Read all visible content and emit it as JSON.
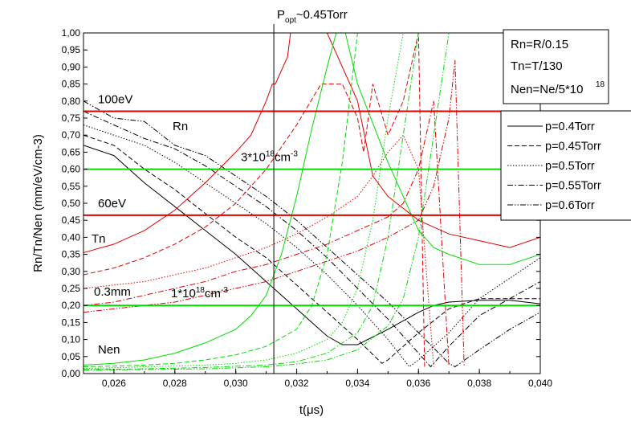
{
  "chart_data": {
    "type": "line",
    "xlabel": "t(μs)",
    "ylabel": "Rn/Tn/Nen (mm/eV/cm-3)",
    "xlim": [
      0.025,
      0.04
    ],
    "ylim": [
      0.0,
      1.0
    ],
    "x_ticks": [
      "0,026",
      "0,028",
      "0,030",
      "0,032",
      "0,034",
      "0,036",
      "0,038",
      "0,040"
    ],
    "x_tick_values": [
      0.026,
      0.028,
      0.03,
      0.032,
      0.034,
      0.036,
      0.038,
      0.04
    ],
    "y_ticks": [
      "0,00",
      "0,05",
      "0,10",
      "0,15",
      "0,20",
      "0,25",
      "0,30",
      "0,35",
      "0,40",
      "0,45",
      "0,50",
      "0,55",
      "0,60",
      "0,65",
      "0,70",
      "0,75",
      "0,80",
      "0,85",
      "0,90",
      "0,95",
      "1,00"
    ],
    "y_tick_values": [
      0,
      0.05,
      0.1,
      0.15,
      0.2,
      0.25,
      0.3,
      0.35,
      0.4,
      0.45,
      0.5,
      0.55,
      0.6,
      0.65,
      0.7,
      0.75,
      0.8,
      0.85,
      0.9,
      0.95,
      1.0
    ],
    "legend": {
      "placement": "right",
      "entries": [
        {
          "label": "p=0.4Torr",
          "dash": "solid"
        },
        {
          "label": "p=0.45Torr",
          "dash": "dashed"
        },
        {
          "label": "p=0.5Torr",
          "dash": "dotted"
        },
        {
          "label": "p=0.55Torr",
          "dash": "dash-dot"
        },
        {
          "label": "p=0.6Torr",
          "dash": "dash-dot-dot"
        }
      ]
    },
    "info_box": [
      "Rn=R/0.15",
      "Tn=T/130",
      "Nen=Ne/5*10",
      "18"
    ],
    "reference_lines": [
      {
        "axis": "y",
        "value": 0.77,
        "color": "#e00000",
        "label": "100eV"
      },
      {
        "axis": "y",
        "value": 0.465,
        "color": "#e00000",
        "label": "60eV"
      },
      {
        "axis": "y",
        "value": 0.6,
        "color": "#00dd00",
        "label": "3*10",
        "sup": "18",
        "unit": "cm",
        "unit_sup": "-3"
      },
      {
        "axis": "y",
        "value": 0.2,
        "color": "#00dd00",
        "label": "1*10",
        "sup": "18",
        "unit": "cm",
        "unit_sup": "-3"
      },
      {
        "axis": "x",
        "value": 0.03125,
        "color": "#000000",
        "label": "P",
        "sub": "opt",
        "suffix": "~0.45Torr"
      }
    ],
    "curve_labels": [
      {
        "text": "Rn",
        "x": 0.0285,
        "y": 0.7
      },
      {
        "text": "Tn",
        "x": 0.0251,
        "y": 0.385
      },
      {
        "text": "0.3mm",
        "x": 0.0251,
        "y": 0.23
      },
      {
        "text": "Nen",
        "x": 0.0251,
        "y": 0.063
      }
    ],
    "colors": {
      "Rn": "#000000",
      "Tn": "#e00000",
      "Nen": "#00dd00"
    },
    "series": [
      {
        "group": "Rn",
        "pressure": "p=0.4Torr",
        "dash": "solid",
        "color": "#000000",
        "x": [
          0.025,
          0.026,
          0.027,
          0.028,
          0.029,
          0.03,
          0.031,
          0.032,
          0.033,
          0.0335,
          0.034,
          0.035,
          0.036,
          0.0365,
          0.037,
          0.038,
          0.039,
          0.04
        ],
        "y": [
          0.67,
          0.64,
          0.56,
          0.49,
          0.42,
          0.35,
          0.27,
          0.19,
          0.11,
          0.085,
          0.085,
          0.13,
          0.18,
          0.2,
          0.21,
          0.215,
          0.215,
          0.205
        ]
      },
      {
        "group": "Rn",
        "pressure": "p=0.45Torr",
        "dash": "dashed",
        "color": "#000000",
        "x": [
          0.025,
          0.026,
          0.027,
          0.028,
          0.029,
          0.03,
          0.031,
          0.032,
          0.033,
          0.034,
          0.0348,
          0.035,
          0.036,
          0.037,
          0.038,
          0.039,
          0.04
        ],
        "y": [
          0.7,
          0.67,
          0.6,
          0.54,
          0.47,
          0.4,
          0.34,
          0.26,
          0.18,
          0.1,
          0.03,
          0.04,
          0.12,
          0.19,
          0.22,
          0.22,
          0.22
        ]
      },
      {
        "group": "Rn",
        "pressure": "p=0.5Torr",
        "dash": "dotted",
        "color": "#000000",
        "x": [
          0.025,
          0.026,
          0.027,
          0.028,
          0.029,
          0.03,
          0.031,
          0.032,
          0.033,
          0.034,
          0.035,
          0.0357,
          0.036,
          0.037,
          0.038,
          0.039,
          0.04
        ],
        "y": [
          0.73,
          0.7,
          0.67,
          0.62,
          0.56,
          0.5,
          0.44,
          0.37,
          0.29,
          0.2,
          0.1,
          0.02,
          0.04,
          0.12,
          0.22,
          0.28,
          0.34
        ]
      },
      {
        "group": "Rn",
        "pressure": "p=0.55Torr",
        "dash": "dash-dot",
        "color": "#000000",
        "x": [
          0.025,
          0.026,
          0.027,
          0.028,
          0.029,
          0.03,
          0.031,
          0.032,
          0.033,
          0.034,
          0.035,
          0.036,
          0.0364,
          0.037,
          0.038,
          0.039,
          0.04
        ],
        "y": [
          0.77,
          0.73,
          0.69,
          0.66,
          0.61,
          0.55,
          0.49,
          0.42,
          0.34,
          0.25,
          0.16,
          0.06,
          0.02,
          0.08,
          0.17,
          0.22,
          0.27
        ]
      },
      {
        "group": "Rn",
        "pressure": "p=0.6Torr",
        "dash": "dash-dot-dot",
        "color": "#000000",
        "x": [
          0.025,
          0.026,
          0.027,
          0.028,
          0.029,
          0.03,
          0.031,
          0.032,
          0.033,
          0.034,
          0.035,
          0.036,
          0.037,
          0.0372,
          0.038,
          0.039,
          0.04
        ],
        "y": [
          0.8,
          0.75,
          0.74,
          0.67,
          0.64,
          0.58,
          0.52,
          0.45,
          0.37,
          0.29,
          0.21,
          0.12,
          0.03,
          0.02,
          0.07,
          0.13,
          0.18
        ]
      },
      {
        "group": "Tn",
        "pressure": "p=0.4Torr",
        "dash": "solid",
        "color": "#e00000",
        "x": [
          0.025,
          0.026,
          0.027,
          0.028,
          0.029,
          0.03,
          0.0305,
          0.031,
          0.0312,
          0.0313,
          0.0317,
          0.0318,
          0.032,
          0.033,
          0.034,
          0.0345,
          0.035,
          0.036,
          0.037,
          0.038,
          0.039,
          0.04
        ],
        "y": [
          0.355,
          0.38,
          0.42,
          0.48,
          0.56,
          0.65,
          0.7,
          0.8,
          0.85,
          0.85,
          0.93,
          1.0,
          1.0,
          1.0,
          0.8,
          0.58,
          0.52,
          0.45,
          0.41,
          0.39,
          0.37,
          0.4
        ]
      },
      {
        "group": "Tn",
        "pressure": "p=0.45Torr",
        "dash": "dashed",
        "color": "#e00000",
        "x": [
          0.025,
          0.026,
          0.027,
          0.028,
          0.029,
          0.03,
          0.031,
          0.032,
          0.0328,
          0.033,
          0.0335,
          0.034,
          0.0342,
          0.0345,
          0.035,
          0.0355,
          0.036,
          0.0362
        ],
        "y": [
          0.29,
          0.31,
          0.34,
          0.38,
          0.43,
          0.5,
          0.6,
          0.73,
          0.85,
          0.85,
          0.85,
          0.75,
          0.65,
          0.85,
          0.7,
          0.8,
          1.0,
          0.02
        ]
      },
      {
        "group": "Tn",
        "pressure": "p=0.5Torr",
        "dash": "dotted",
        "color": "#e00000",
        "x": [
          0.025,
          0.026,
          0.027,
          0.028,
          0.029,
          0.03,
          0.031,
          0.032,
          0.033,
          0.034,
          0.0345,
          0.035,
          0.0355,
          0.036,
          0.0365
        ],
        "y": [
          0.25,
          0.26,
          0.27,
          0.29,
          0.31,
          0.34,
          0.37,
          0.41,
          0.46,
          0.52,
          0.58,
          0.65,
          0.7,
          0.6,
          0.02
        ]
      },
      {
        "group": "Tn",
        "pressure": "p=0.55Torr",
        "dash": "dash-dot",
        "color": "#e00000",
        "x": [
          0.025,
          0.026,
          0.027,
          0.028,
          0.029,
          0.03,
          0.031,
          0.032,
          0.033,
          0.034,
          0.035,
          0.0355,
          0.036,
          0.0365,
          0.037
        ],
        "y": [
          0.2,
          0.21,
          0.23,
          0.25,
          0.27,
          0.3,
          0.32,
          0.35,
          0.38,
          0.42,
          0.46,
          0.5,
          0.6,
          0.8,
          0.02
        ]
      },
      {
        "group": "Tn",
        "pressure": "p=0.6Torr",
        "dash": "dash-dot-dot",
        "color": "#e00000",
        "x": [
          0.025,
          0.026,
          0.027,
          0.028,
          0.029,
          0.03,
          0.031,
          0.032,
          0.033,
          0.034,
          0.035,
          0.036,
          0.0365,
          0.037,
          0.0372,
          0.0375
        ],
        "y": [
          0.18,
          0.19,
          0.2,
          0.21,
          0.23,
          0.25,
          0.27,
          0.3,
          0.33,
          0.36,
          0.4,
          0.45,
          0.55,
          0.75,
          0.92,
          0.02
        ]
      },
      {
        "group": "Nen",
        "pressure": "p=0.4Torr",
        "dash": "solid",
        "color": "#00dd00",
        "x": [
          0.025,
          0.026,
          0.027,
          0.028,
          0.029,
          0.03,
          0.0305,
          0.031,
          0.0315,
          0.032,
          0.0325,
          0.033,
          0.0333,
          0.0336,
          0.034,
          0.035,
          0.036,
          0.0365,
          0.037,
          0.038,
          0.039,
          0.04
        ],
        "y": [
          0.025,
          0.03,
          0.04,
          0.06,
          0.09,
          0.13,
          0.17,
          0.23,
          0.35,
          0.52,
          0.72,
          0.9,
          1.0,
          1.0,
          0.85,
          0.62,
          0.42,
          0.37,
          0.35,
          0.32,
          0.32,
          0.35
        ]
      },
      {
        "group": "Nen",
        "pressure": "p=0.45Torr",
        "dash": "dashed",
        "color": "#00dd00",
        "x": [
          0.025,
          0.026,
          0.027,
          0.028,
          0.029,
          0.03,
          0.031,
          0.032,
          0.0325,
          0.033,
          0.0335,
          0.034
        ],
        "y": [
          0.02,
          0.022,
          0.025,
          0.03,
          0.04,
          0.055,
          0.08,
          0.13,
          0.2,
          0.35,
          0.62,
          1.0
        ]
      },
      {
        "group": "Nen",
        "pressure": "p=0.5Torr",
        "dash": "dotted",
        "color": "#00dd00",
        "x": [
          0.025,
          0.026,
          0.027,
          0.028,
          0.029,
          0.03,
          0.031,
          0.032,
          0.033,
          0.0335,
          0.034,
          0.0345,
          0.035,
          0.0355
        ],
        "y": [
          0.015,
          0.017,
          0.02,
          0.022,
          0.025,
          0.03,
          0.04,
          0.06,
          0.1,
          0.15,
          0.25,
          0.45,
          0.75,
          1.0
        ]
      },
      {
        "group": "Nen",
        "pressure": "p=0.55Torr",
        "dash": "dash-dot",
        "color": "#00dd00",
        "x": [
          0.025,
          0.027,
          0.029,
          0.031,
          0.032,
          0.033,
          0.034,
          0.0345,
          0.035,
          0.0355,
          0.036
        ],
        "y": [
          0.012,
          0.014,
          0.018,
          0.025,
          0.035,
          0.06,
          0.12,
          0.2,
          0.4,
          0.7,
          1.0
        ]
      },
      {
        "group": "Nen",
        "pressure": "p=0.6Torr",
        "dash": "dash-dot-dot",
        "color": "#00dd00",
        "x": [
          0.025,
          0.027,
          0.029,
          0.031,
          0.032,
          0.033,
          0.034,
          0.035,
          0.0355,
          0.036,
          0.0365,
          0.037
        ],
        "y": [
          0.01,
          0.012,
          0.014,
          0.02,
          0.028,
          0.04,
          0.07,
          0.14,
          0.22,
          0.4,
          0.7,
          1.0
        ]
      }
    ]
  }
}
